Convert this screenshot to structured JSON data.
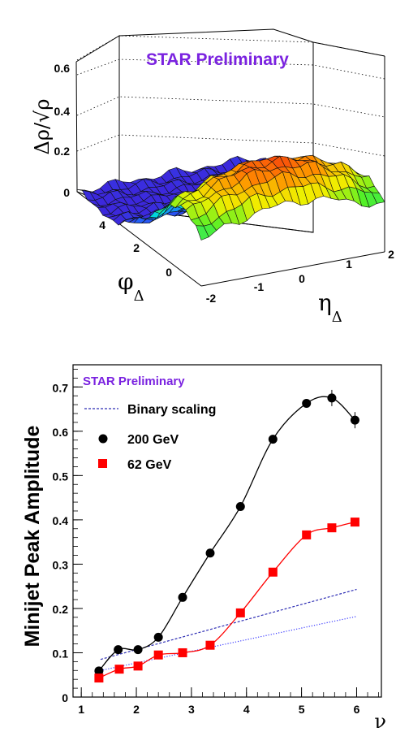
{
  "chart_data": [
    {
      "type": "surface",
      "title": "STAR Preliminary",
      "zlabel": "Δρ/√ρ",
      "xlabel": "η_Δ",
      "ylabel": "φ_Δ",
      "z_ticks": [
        "0",
        "0.2",
        "0.4",
        "0.6"
      ],
      "x_ticks": [
        "-2",
        "-1",
        "0",
        "1",
        "2"
      ],
      "y_ticks": [
        "0",
        "2",
        "4"
      ],
      "zlim": [
        0,
        0.65
      ],
      "xlim": [
        -2,
        2
      ],
      "ylim": [
        -1,
        5
      ]
    },
    {
      "type": "line",
      "title": "STAR Preliminary",
      "ylabel": "Minijet Peak Amplitude",
      "xlabel": "ν",
      "xlim": [
        0.85,
        6.45
      ],
      "ylim": [
        0,
        0.75
      ],
      "x_ticks": [
        "1",
        "2",
        "3",
        "4",
        "5",
        "6"
      ],
      "y_ticks": [
        "0",
        "0.1",
        "0.2",
        "0.3",
        "0.4",
        "0.5",
        "0.6",
        "0.7"
      ],
      "series": [
        {
          "name": "Binary scaling",
          "color": "#2d2db4",
          "style": "dashed",
          "x": [
            1.35,
            6.0
          ],
          "y": [
            0.085,
            0.243
          ]
        },
        {
          "name": "",
          "color": "#3a3aff",
          "style": "dotted",
          "x": [
            1.35,
            6.0
          ],
          "y": [
            0.06,
            0.182
          ]
        },
        {
          "name": "200 GeV",
          "color": "#000000",
          "marker": "circle",
          "x": [
            1.32,
            1.67,
            2.03,
            2.4,
            2.84,
            3.34,
            3.89,
            4.48,
            5.09,
            5.55,
            5.97
          ],
          "y": [
            0.059,
            0.107,
            0.107,
            0.135,
            0.225,
            0.325,
            0.43,
            0.582,
            0.663,
            0.675,
            0.625
          ]
        },
        {
          "name": "62 GeV",
          "color": "#ff0000",
          "marker": "square",
          "x": [
            1.32,
            1.69,
            2.03,
            2.4,
            2.84,
            3.34,
            3.89,
            4.48,
            5.09,
            5.55,
            5.97
          ],
          "y": [
            0.043,
            0.063,
            0.07,
            0.095,
            0.1,
            0.117,
            0.19,
            0.282,
            0.366,
            0.382,
            0.395
          ]
        }
      ]
    }
  ]
}
